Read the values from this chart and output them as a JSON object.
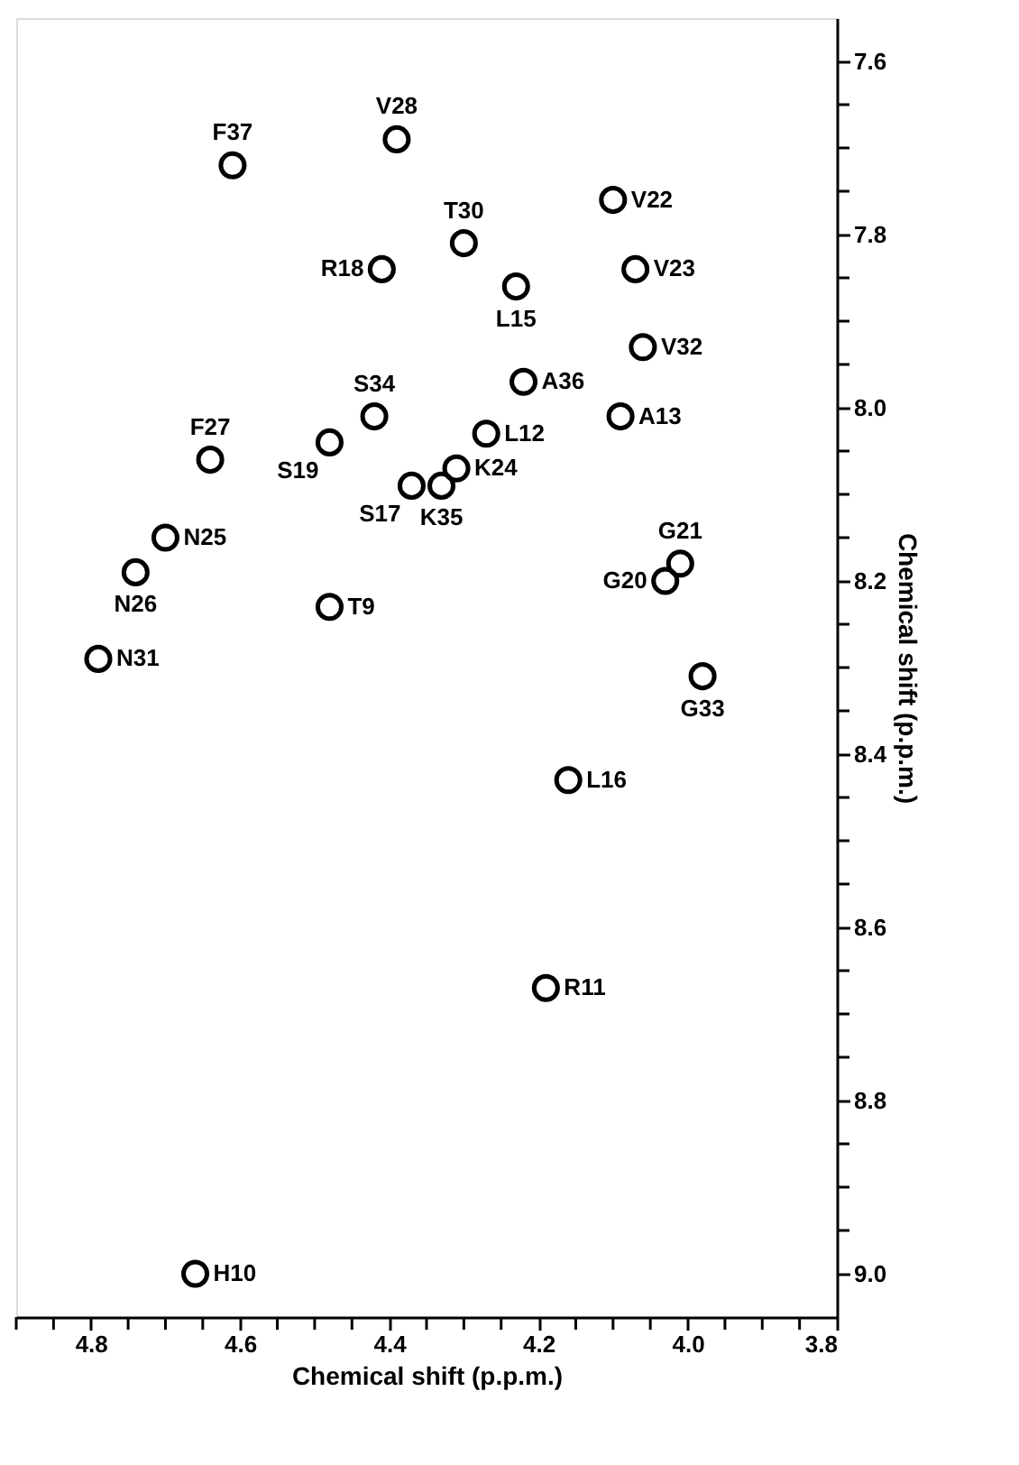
{
  "chart_data": {
    "type": "scatter",
    "xlabel": "Chemical shift (p.p.m.)",
    "ylabel": "Chemical shift (p.p.m.)",
    "x": [
      4.61,
      4.39,
      4.3,
      4.41,
      4.23,
      4.1,
      4.07,
      4.06,
      4.22,
      4.09,
      4.42,
      4.48,
      4.64,
      4.27,
      4.31,
      4.37,
      4.33,
      4.7,
      4.74,
      4.48,
      4.01,
      4.03,
      4.79,
      3.98,
      4.16,
      4.19,
      4.66
    ],
    "values": [
      7.72,
      7.69,
      7.81,
      7.84,
      7.86,
      7.76,
      7.84,
      7.93,
      7.97,
      8.01,
      8.01,
      8.04,
      8.06,
      8.03,
      8.07,
      8.09,
      8.09,
      8.15,
      8.19,
      8.23,
      8.18,
      8.2,
      8.29,
      8.31,
      8.43,
      8.67,
      9.0
    ],
    "color": "#000000",
    "marker": "circle",
    "grid": false,
    "annotations": [
      {
        "text": "F37",
        "x": 4.61,
        "y": 7.72
      },
      {
        "text": "V28",
        "x": 4.39,
        "y": 7.69
      },
      {
        "text": "T30",
        "x": 4.3,
        "y": 7.81
      },
      {
        "text": "R18",
        "x": 4.41,
        "y": 7.84
      },
      {
        "text": "L15",
        "x": 4.23,
        "y": 7.86
      },
      {
        "text": "V22",
        "x": 4.1,
        "y": 7.76
      },
      {
        "text": "V23",
        "x": 4.07,
        "y": 7.84
      },
      {
        "text": "V32",
        "x": 4.06,
        "y": 7.93
      },
      {
        "text": "A36",
        "x": 4.22,
        "y": 7.97
      },
      {
        "text": "A13",
        "x": 4.09,
        "y": 8.01
      },
      {
        "text": "S34",
        "x": 4.42,
        "y": 8.01
      },
      {
        "text": "S19",
        "x": 4.48,
        "y": 8.04
      },
      {
        "text": "F27",
        "x": 4.64,
        "y": 8.06
      },
      {
        "text": "L12",
        "x": 4.27,
        "y": 8.03
      },
      {
        "text": "K24",
        "x": 4.31,
        "y": 8.07
      },
      {
        "text": "S17",
        "x": 4.37,
        "y": 8.09
      },
      {
        "text": "K35",
        "x": 4.33,
        "y": 8.09
      },
      {
        "text": "N25",
        "x": 4.7,
        "y": 8.15
      },
      {
        "text": "N26",
        "x": 4.74,
        "y": 8.19
      },
      {
        "text": "T9",
        "x": 4.48,
        "y": 8.23
      },
      {
        "text": "G21",
        "x": 4.01,
        "y": 8.18
      },
      {
        "text": "G20",
        "x": 4.03,
        "y": 8.2
      },
      {
        "text": "N31",
        "x": 4.79,
        "y": 8.29
      },
      {
        "text": "G33",
        "x": 3.98,
        "y": 8.31
      },
      {
        "text": "L16",
        "x": 4.16,
        "y": 8.43
      },
      {
        "text": "R11",
        "x": 4.19,
        "y": 8.67
      },
      {
        "text": "H10",
        "x": 4.66,
        "y": 9.0
      }
    ],
    "xlim": [
      4.9,
      3.8
    ],
    "xticks": [
      {
        "value": 4.9,
        "label": null
      },
      {
        "value": 4.85,
        "label": null
      },
      4.8,
      {
        "value": 4.75,
        "label": null
      },
      {
        "value": 4.7,
        "label": null
      },
      {
        "value": 4.65,
        "label": null
      },
      4.6,
      {
        "value": 4.55,
        "label": null
      },
      {
        "value": 4.5,
        "label": null
      },
      {
        "value": 4.45,
        "label": null
      },
      4.4,
      {
        "value": 4.35,
        "label": null
      },
      {
        "value": 4.3,
        "label": null
      },
      {
        "value": 4.25,
        "label": null
      },
      4.2,
      {
        "value": 4.15,
        "label": null
      },
      {
        "value": 4.1,
        "label": null
      },
      {
        "value": 4.05,
        "label": null
      },
      {
        "value": 4.0,
        "label": "4.0"
      },
      {
        "value": 3.95,
        "label": null
      },
      {
        "value": 3.9,
        "label": null
      },
      {
        "value": 3.85,
        "label": null
      },
      3.8
    ],
    "ylim": [
      9.05,
      7.55
    ],
    "yticks": [
      7.6,
      {
        "value": 7.65,
        "label": null
      },
      {
        "value": 7.7,
        "label": null
      },
      {
        "value": 7.75,
        "label": null
      },
      7.8,
      {
        "value": 7.85,
        "label": null
      },
      {
        "value": 7.9,
        "label": null
      },
      {
        "value": 7.95,
        "label": null
      },
      {
        "value": 8.0,
        "label": "8.0"
      },
      {
        "value": 8.05,
        "label": null
      },
      {
        "value": 8.1,
        "label": null
      },
      {
        "value": 8.15,
        "label": null
      },
      8.2,
      {
        "value": 8.25,
        "label": null
      },
      {
        "value": 8.3,
        "label": null
      },
      {
        "value": 8.35,
        "label": null
      },
      8.4,
      {
        "value": 8.45,
        "label": null
      },
      {
        "value": 8.5,
        "label": null
      },
      {
        "value": 8.55,
        "label": null
      },
      8.6,
      {
        "value": 8.65,
        "label": null
      },
      {
        "value": 8.7,
        "label": null
      },
      {
        "value": 8.75,
        "label": null
      },
      8.8,
      {
        "value": 8.85,
        "label": null
      },
      {
        "value": 8.9,
        "label": null
      },
      {
        "value": 8.95,
        "label": null
      },
      {
        "value": 9.0,
        "label": "9.0"
      }
    ]
  }
}
